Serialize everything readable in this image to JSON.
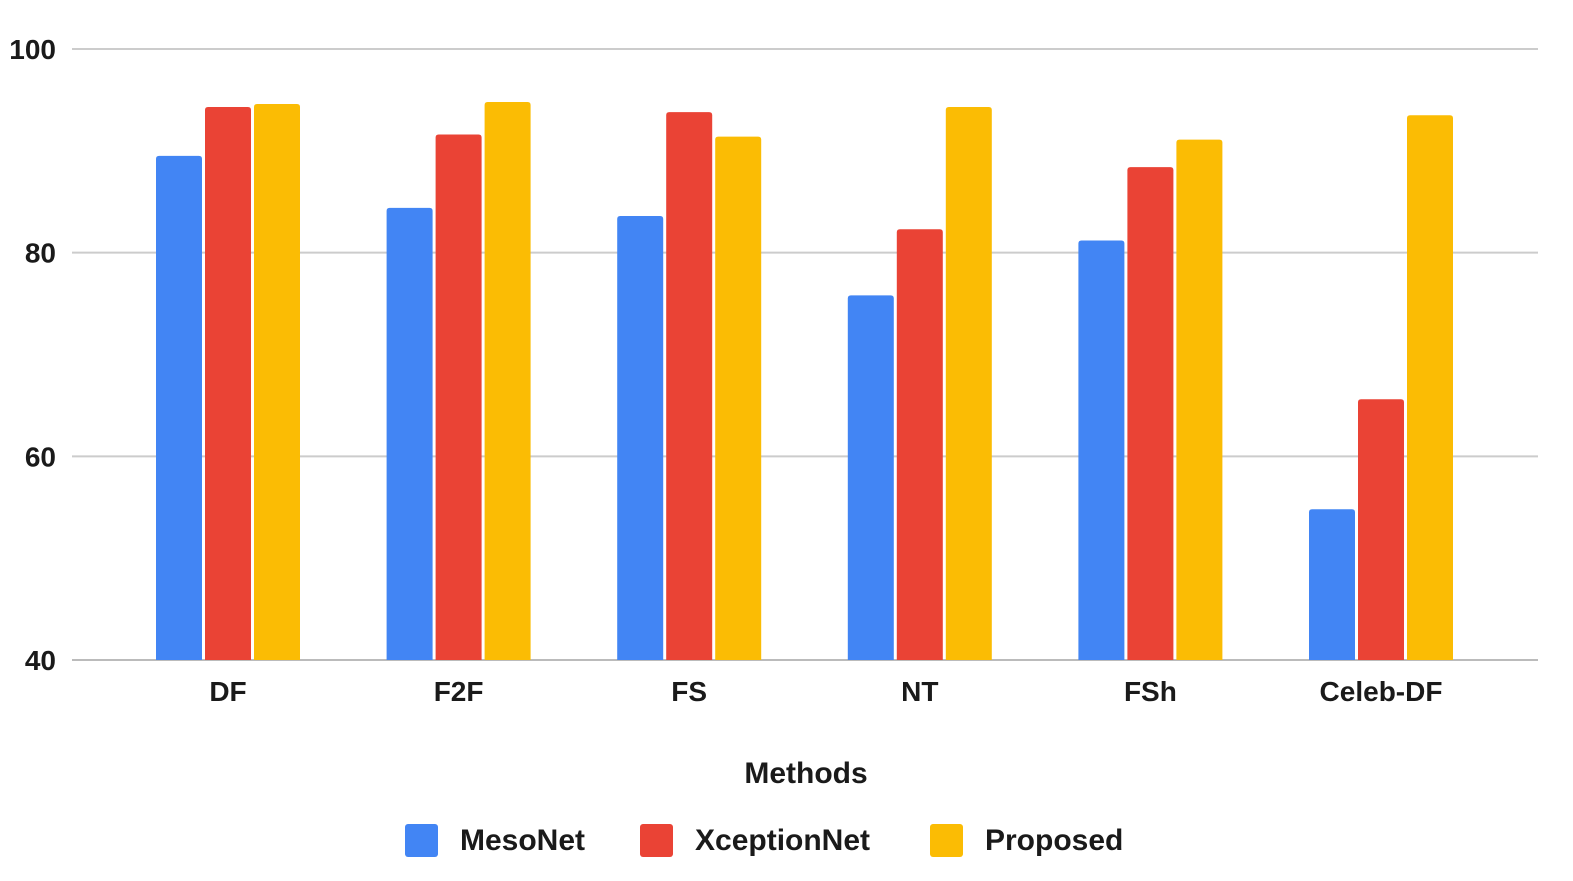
{
  "chart_data": {
    "type": "bar",
    "title": "",
    "xlabel": "Methods",
    "ylabel": "",
    "ylim": [
      40,
      100
    ],
    "yticks": [
      40,
      60,
      80,
      100
    ],
    "grid": true,
    "legend_position": "bottom",
    "categories": [
      "DF",
      "F2F",
      "FS",
      "NT",
      "FSh",
      "Celeb-DF"
    ],
    "series": [
      {
        "name": "MesoNet",
        "color": "#4285F4",
        "values": [
          89.5,
          84.4,
          83.6,
          75.8,
          81.2,
          54.8
        ]
      },
      {
        "name": "XceptionNet",
        "color": "#EA4335",
        "values": [
          94.3,
          91.6,
          93.8,
          82.3,
          88.4,
          65.6
        ]
      },
      {
        "name": "Proposed",
        "color": "#FBBC04",
        "values": [
          94.6,
          94.8,
          91.4,
          94.3,
          91.1,
          93.5
        ]
      }
    ]
  }
}
